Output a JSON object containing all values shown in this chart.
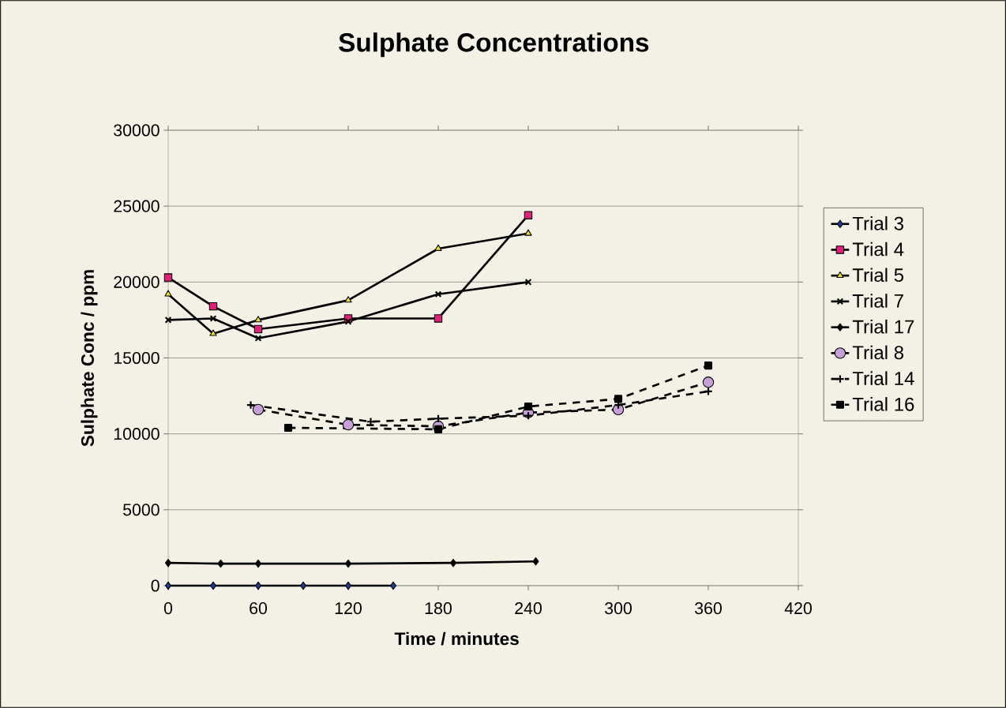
{
  "chart_data": {
    "type": "line",
    "title": "Sulphate Concentrations",
    "xlabel": "Time / minutes",
    "ylabel": "Sulphate Conc / ppm",
    "xlim": [
      0,
      420
    ],
    "xticks": [
      0,
      60,
      120,
      180,
      240,
      300,
      360,
      420
    ],
    "ylim": [
      0,
      30000
    ],
    "yticks": [
      0,
      5000,
      10000,
      15000,
      20000,
      25000,
      30000
    ],
    "grid": "y",
    "legend": "right",
    "series": [
      {
        "name": "Trial 3",
        "color": "#1f3a93",
        "marker": "diamond",
        "line_style": "solid",
        "x": [
          0,
          30,
          60,
          90,
          120,
          150
        ],
        "values": [
          0,
          0,
          0,
          0,
          0,
          0
        ]
      },
      {
        "name": "Trial 4",
        "color": "#e0207a",
        "marker": "square",
        "line_style": "solid",
        "x": [
          0,
          30,
          60,
          120,
          180,
          240
        ],
        "values": [
          20300,
          18400,
          16900,
          17600,
          17600,
          24400
        ]
      },
      {
        "name": "Trial 5",
        "color": "#f0e020",
        "marker": "triangle",
        "line_style": "solid",
        "x": [
          0,
          30,
          60,
          120,
          180,
          240
        ],
        "values": [
          19200,
          16600,
          17500,
          18800,
          22200,
          23200
        ]
      },
      {
        "name": "Trial 7",
        "color": "#000000",
        "marker": "cross",
        "line_style": "solid",
        "x": [
          0,
          30,
          60,
          120,
          180,
          240
        ],
        "values": [
          17500,
          17600,
          16300,
          17400,
          19200,
          20000
        ]
      },
      {
        "name": "Trial 17",
        "color": "#000000",
        "marker": "diamond",
        "line_style": "solid",
        "x": [
          0,
          35,
          60,
          120,
          190,
          245
        ],
        "values": [
          1500,
          1450,
          1450,
          1450,
          1500,
          1600
        ]
      },
      {
        "name": "Trial 8",
        "color": "#c8a0d8",
        "marker": "circle",
        "line_style": "dashed",
        "x": [
          60,
          120,
          180,
          240,
          300,
          360
        ],
        "values": [
          11600,
          10600,
          10500,
          11400,
          11600,
          13400
        ]
      },
      {
        "name": "Trial 14",
        "color": "#000000",
        "marker": "plus",
        "line_style": "dashed",
        "x": [
          55,
          135,
          180,
          240,
          300,
          360
        ],
        "values": [
          11900,
          10800,
          11000,
          11200,
          11900,
          12800
        ]
      },
      {
        "name": "Trial 16",
        "color": "#000000",
        "marker": "square",
        "line_style": "dashed",
        "x": [
          80,
          180,
          240,
          300,
          360
        ],
        "values": [
          10400,
          10300,
          11800,
          12300,
          14500
        ]
      }
    ]
  }
}
